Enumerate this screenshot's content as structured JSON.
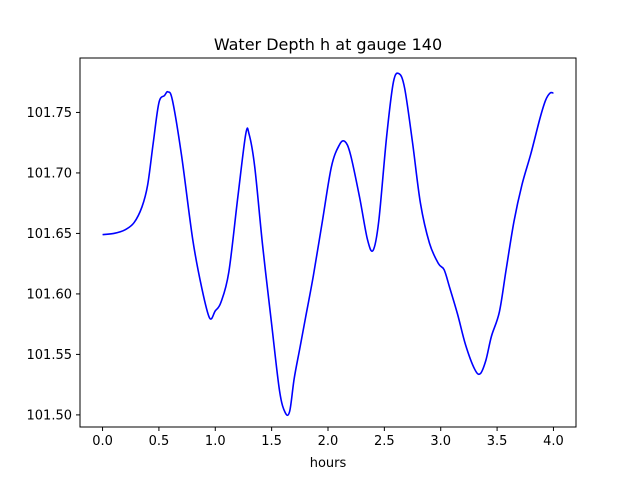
{
  "chart_data": {
    "type": "line",
    "title": "Water Depth h at gauge 140",
    "xlabel": "hours",
    "ylabel": "",
    "xlim": [
      -0.2,
      4.2
    ],
    "ylim": [
      101.49,
      101.795
    ],
    "xticks": [
      0.0,
      0.5,
      1.0,
      1.5,
      2.0,
      2.5,
      3.0,
      3.5,
      4.0
    ],
    "xtick_labels": [
      "0.0",
      "0.5",
      "1.0",
      "1.5",
      "2.0",
      "2.5",
      "3.0",
      "3.5",
      "4.0"
    ],
    "yticks": [
      101.5,
      101.55,
      101.6,
      101.65,
      101.7,
      101.75
    ],
    "ytick_labels": [
      "101.50",
      "101.55",
      "101.60",
      "101.65",
      "101.70",
      "101.75"
    ],
    "grid": false,
    "series": [
      {
        "color": "#0000ff",
        "x": [
          0.0,
          0.1,
          0.2,
          0.28,
          0.35,
          0.4,
          0.45,
          0.5,
          0.55,
          0.58,
          0.62,
          0.7,
          0.8,
          0.88,
          0.95,
          1.0,
          1.05,
          1.12,
          1.2,
          1.27,
          1.3,
          1.35,
          1.42,
          1.5,
          1.57,
          1.62,
          1.66,
          1.7,
          1.75,
          1.8,
          1.87,
          1.95,
          2.03,
          2.1,
          2.15,
          2.2,
          2.28,
          2.35,
          2.4,
          2.45,
          2.52,
          2.58,
          2.63,
          2.68,
          2.75,
          2.82,
          2.9,
          2.98,
          3.03,
          3.08,
          3.15,
          3.22,
          3.3,
          3.35,
          3.4,
          3.45,
          3.52,
          3.58,
          3.65,
          3.72,
          3.8,
          3.88,
          3.93,
          3.97,
          4.0
        ],
        "values": [
          101.649,
          101.65,
          101.653,
          101.659,
          101.672,
          101.69,
          101.725,
          101.758,
          101.764,
          101.767,
          101.76,
          101.715,
          101.645,
          101.605,
          101.58,
          101.586,
          101.593,
          101.618,
          101.68,
          101.732,
          101.732,
          101.705,
          101.64,
          101.575,
          101.52,
          101.502,
          101.503,
          101.53,
          101.555,
          101.58,
          101.615,
          101.66,
          101.705,
          101.723,
          101.726,
          101.715,
          101.68,
          101.645,
          101.636,
          101.66,
          101.73,
          101.775,
          101.782,
          101.77,
          101.725,
          101.675,
          101.642,
          101.625,
          101.62,
          101.605,
          101.583,
          101.558,
          101.538,
          101.534,
          101.545,
          101.565,
          101.585,
          101.62,
          101.66,
          101.69,
          101.716,
          101.745,
          101.76,
          101.766,
          101.766
        ]
      }
    ]
  }
}
